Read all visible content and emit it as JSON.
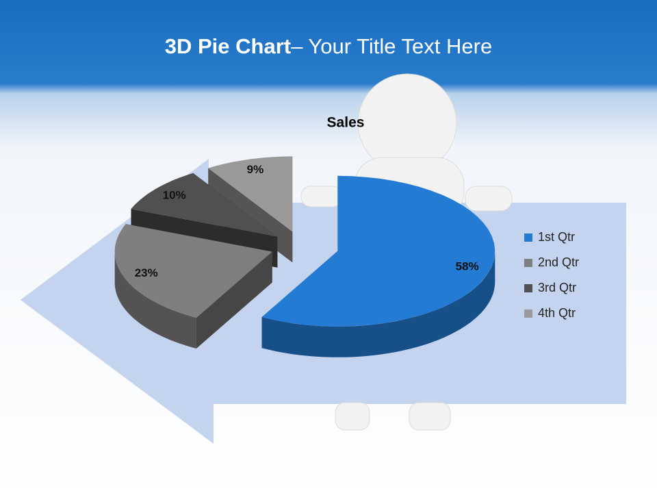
{
  "slide": {
    "title_bold": "3D Pie Chart",
    "title_rest": "– Your Title Text Here"
  },
  "chart_data": {
    "type": "pie",
    "title": "Sales",
    "categories": [
      "1st Qtr",
      "2nd Qtr",
      "3rd Qtr",
      "4th Qtr"
    ],
    "values": [
      58,
      23,
      10,
      9
    ],
    "value_labels": [
      "58%",
      "23%",
      "10%",
      "9%"
    ],
    "colors": [
      "#237bd3",
      "#7f7f7f",
      "#505050",
      "#9a9a9a"
    ],
    "legend": "right"
  }
}
